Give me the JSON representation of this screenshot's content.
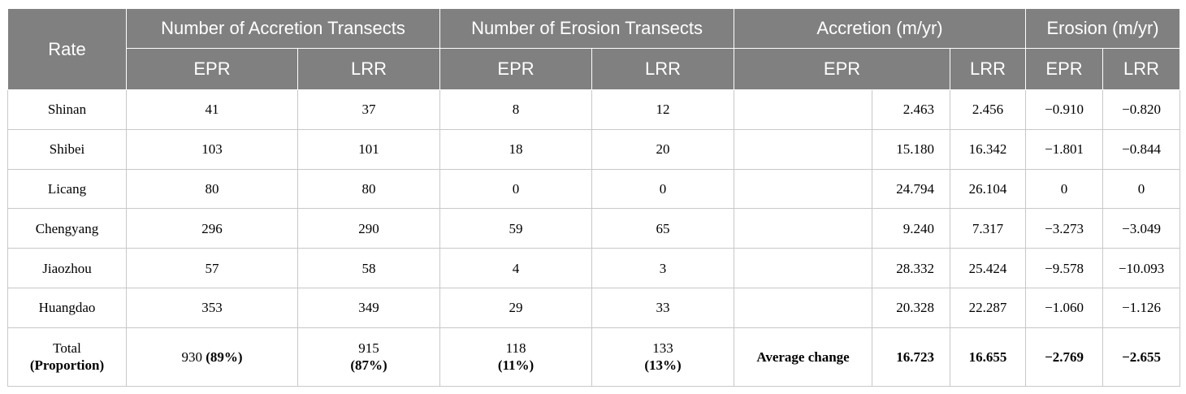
{
  "header": {
    "rate": "Rate",
    "acc_transects": "Number of Accretion Transects",
    "ero_transects": "Number of Erosion Transects",
    "accretion": "Accretion (m/yr)",
    "erosion": "Erosion (m/yr)",
    "epr": "EPR",
    "lrr": "LRR"
  },
  "rows": [
    {
      "name": "Shinan",
      "acc_epr": "41",
      "acc_lrr": "37",
      "ero_epr": "8",
      "ero_lrr": "12",
      "accr_epr": "2.463",
      "accr_lrr": "2.456",
      "eros_epr": "−0.910",
      "eros_lrr": "−0.820"
    },
    {
      "name": "Shibei",
      "acc_epr": "103",
      "acc_lrr": "101",
      "ero_epr": "18",
      "ero_lrr": "20",
      "accr_epr": "15.180",
      "accr_lrr": "16.342",
      "eros_epr": "−1.801",
      "eros_lrr": "−0.844"
    },
    {
      "name": "Licang",
      "acc_epr": "80",
      "acc_lrr": "80",
      "ero_epr": "0",
      "ero_lrr": "0",
      "accr_epr": "24.794",
      "accr_lrr": "26.104",
      "eros_epr": "0",
      "eros_lrr": "0"
    },
    {
      "name": "Chengyang",
      "acc_epr": "296",
      "acc_lrr": "290",
      "ero_epr": "59",
      "ero_lrr": "65",
      "accr_epr": "9.240",
      "accr_lrr": "7.317",
      "eros_epr": "−3.273",
      "eros_lrr": "−3.049"
    },
    {
      "name": "Jiaozhou",
      "acc_epr": "57",
      "acc_lrr": "58",
      "ero_epr": "4",
      "ero_lrr": "3",
      "accr_epr": "28.332",
      "accr_lrr": "25.424",
      "eros_epr": "−9.578",
      "eros_lrr": "−10.093"
    },
    {
      "name": "Huangdao",
      "acc_epr": "353",
      "acc_lrr": "349",
      "ero_epr": "29",
      "ero_lrr": "33",
      "accr_epr": "20.328",
      "accr_lrr": "22.287",
      "eros_epr": "−1.060",
      "eros_lrr": "−1.126"
    }
  ],
  "total": {
    "label": "Total",
    "label_sub": "(Proportion)",
    "acc_epr": "930",
    "acc_epr_pct": "(89%)",
    "acc_lrr": "915",
    "acc_lrr_pct": "(87%)",
    "ero_epr": "118",
    "ero_epr_pct": "(11%)",
    "ero_lrr": "133",
    "ero_lrr_pct": "(13%)",
    "avg_label": "Average change",
    "accr_epr": "16.723",
    "accr_lrr": "16.655",
    "eros_epr": "−2.769",
    "eros_lrr": "−2.655"
  }
}
